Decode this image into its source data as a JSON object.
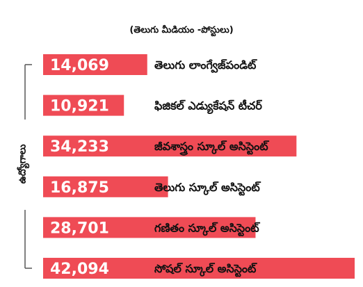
{
  "chart_data": {
    "type": "bar",
    "orientation": "horizontal",
    "subtitle": "(తెలుగు మీడియం -పోస్టులు)",
    "ylabel": "ఉద్యోగాలు",
    "categories": [
      "తెలుగు లాంగ్వేజ్‌పండిట్",
      "ఫిజికల్ ఎడ్యుకేషన్ టీచర్",
      "జీవశాస్త్రం స్కూల్ అసిస్టెంట్",
      "తెలుగు స్కూల్ అసిస్టెంట్",
      "గణితం స్కూల్ అసిస్టెంట్",
      "సోషల్ స్కూల్ అసిస్టెంట్"
    ],
    "values": [
      14069,
      10921,
      34233,
      16875,
      28701,
      42094
    ],
    "value_labels": [
      "14,069",
      "10,921",
      "34,233",
      "16,875",
      "28,701",
      "42,094"
    ],
    "xlim": [
      0,
      42094
    ],
    "bar_color": "#ef4b55",
    "value_label_color": "#ffffff",
    "category_label_color": "#111111",
    "grid": false,
    "legend": "none"
  }
}
